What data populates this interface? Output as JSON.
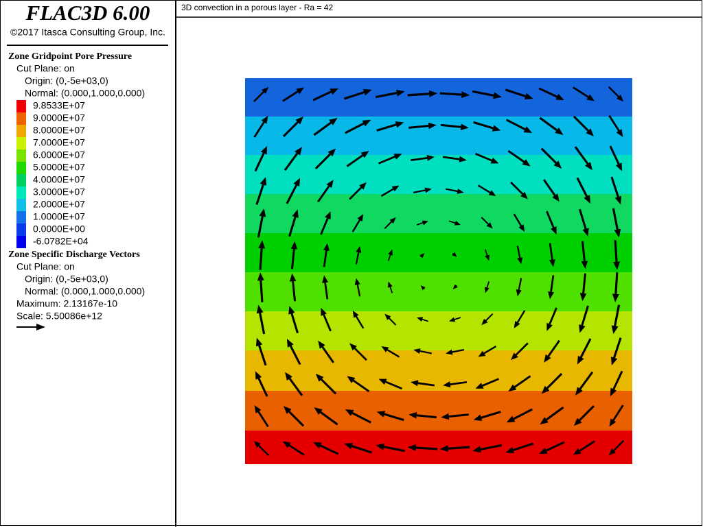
{
  "header": {
    "product": "FLAC3D 6.00",
    "copyright": "©2017 Itasca Consulting Group, Inc."
  },
  "plot_title": "3D convection in a porous layer - Ra = 42",
  "pore_pressure": {
    "title": "Zone Gridpoint Pore Pressure",
    "cut_plane": "Cut Plane: on",
    "origin": "Origin: (0,-5e+03,0)",
    "normal": "Normal: (0.000,1.000,0.000)",
    "legend": [
      {
        "label": "9.8533E+07",
        "color": "#f00000"
      },
      {
        "label": "9.0000E+07",
        "color": "#f06400"
      },
      {
        "label": "8.0000E+07",
        "color": "#f0a800"
      },
      {
        "label": "7.0000E+07",
        "color": "#c8f000"
      },
      {
        "label": "6.0000E+07",
        "color": "#78e400"
      },
      {
        "label": "5.0000E+07",
        "color": "#20d800"
      },
      {
        "label": "4.0000E+07",
        "color": "#00d060"
      },
      {
        "label": "3.0000E+07",
        "color": "#00e8b8"
      },
      {
        "label": "2.0000E+07",
        "color": "#10c0e8"
      },
      {
        "label": "1.0000E+07",
        "color": "#1470e8"
      },
      {
        "label": "0.0000E+00",
        "color": "#0a3ce8"
      },
      {
        "label": "-6.0782E+04",
        "color": "#0000f0"
      }
    ]
  },
  "discharge": {
    "title": "Zone Specific Discharge Vectors",
    "cut_plane": "Cut Plane: on",
    "origin": "Origin: (0,-5e+03,0)",
    "normal": "Normal: (0.000,1.000,0.000)",
    "maximum": "Maximum: 2.13167e-10",
    "scale": "Scale: 5.50086e+12"
  }
}
